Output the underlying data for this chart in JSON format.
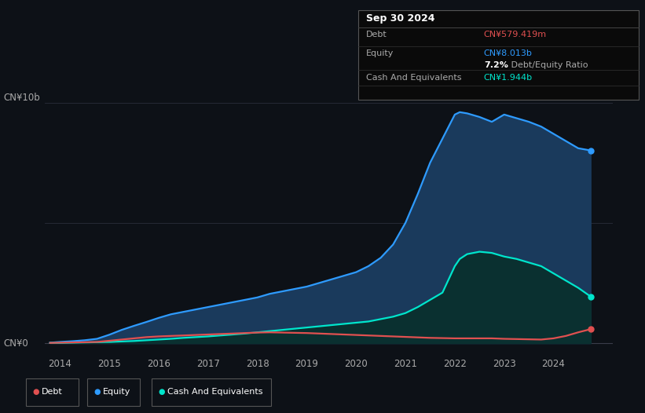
{
  "background_color": "#0d1117",
  "plot_bg_color": "#0d1117",
  "title_box": {
    "date": "Sep 30 2024",
    "debt_label": "Debt",
    "debt_value": "CN¥579.419m",
    "equity_label": "Equity",
    "equity_value": "CN¥8.013b",
    "ratio_bold": "7.2%",
    "ratio_text": " Debt/Equity Ratio",
    "cash_label": "Cash And Equivalents",
    "cash_value": "CN¥1.944b"
  },
  "ylabel_top": "CN¥10b",
  "ylabel_bottom": "CN¥0",
  "x_ticks": [
    2014,
    2015,
    2016,
    2017,
    2018,
    2019,
    2020,
    2021,
    2022,
    2023,
    2024
  ],
  "y_lim": [
    -0.5,
    11.0
  ],
  "grid_color": "#2a2d3a",
  "debt_color": "#e05050",
  "equity_color": "#2e9bff",
  "cash_color": "#00e5cc",
  "equity_fill_color": "#1a3a5c",
  "cash_fill_color": "#0a3030",
  "years": [
    2013.8,
    2014.0,
    2014.25,
    2014.5,
    2014.75,
    2015.0,
    2015.25,
    2015.5,
    2015.75,
    2016.0,
    2016.25,
    2016.5,
    2016.75,
    2017.0,
    2017.25,
    2017.5,
    2017.75,
    2018.0,
    2018.25,
    2018.5,
    2018.75,
    2019.0,
    2019.25,
    2019.5,
    2019.75,
    2020.0,
    2020.25,
    2020.5,
    2020.75,
    2021.0,
    2021.25,
    2021.5,
    2021.75,
    2022.0,
    2022.1,
    2022.25,
    2022.5,
    2022.75,
    2023.0,
    2023.25,
    2023.5,
    2023.75,
    2024.0,
    2024.25,
    2024.5,
    2024.75
  ],
  "equity_values": [
    0.02,
    0.05,
    0.08,
    0.12,
    0.18,
    0.35,
    0.55,
    0.72,
    0.88,
    1.05,
    1.2,
    1.3,
    1.4,
    1.5,
    1.6,
    1.7,
    1.8,
    1.9,
    2.05,
    2.15,
    2.25,
    2.35,
    2.5,
    2.65,
    2.8,
    2.95,
    3.2,
    3.55,
    4.1,
    5.0,
    6.2,
    7.5,
    8.5,
    9.5,
    9.6,
    9.55,
    9.4,
    9.2,
    9.5,
    9.35,
    9.2,
    9.0,
    8.7,
    8.4,
    8.1,
    8.01
  ],
  "cash_values": [
    0.01,
    0.01,
    0.02,
    0.03,
    0.04,
    0.05,
    0.07,
    0.09,
    0.12,
    0.15,
    0.18,
    0.22,
    0.25,
    0.28,
    0.32,
    0.36,
    0.4,
    0.45,
    0.5,
    0.55,
    0.6,
    0.65,
    0.7,
    0.75,
    0.8,
    0.85,
    0.9,
    1.0,
    1.1,
    1.25,
    1.5,
    1.8,
    2.1,
    3.2,
    3.5,
    3.7,
    3.8,
    3.75,
    3.6,
    3.5,
    3.35,
    3.2,
    2.9,
    2.6,
    2.3,
    1.94
  ],
  "debt_values": [
    0.01,
    0.02,
    0.03,
    0.04,
    0.05,
    0.1,
    0.15,
    0.2,
    0.25,
    0.28,
    0.3,
    0.32,
    0.34,
    0.36,
    0.38,
    0.4,
    0.42,
    0.44,
    0.45,
    0.44,
    0.43,
    0.42,
    0.4,
    0.38,
    0.36,
    0.34,
    0.32,
    0.3,
    0.28,
    0.26,
    0.24,
    0.22,
    0.21,
    0.2,
    0.2,
    0.2,
    0.2,
    0.2,
    0.18,
    0.17,
    0.16,
    0.15,
    0.2,
    0.3,
    0.45,
    0.58
  ],
  "legend_items": [
    {
      "label": "Debt",
      "color": "#e05050"
    },
    {
      "label": "Equity",
      "color": "#2e9bff"
    },
    {
      "label": "Cash And Equivalents",
      "color": "#00e5cc"
    }
  ]
}
